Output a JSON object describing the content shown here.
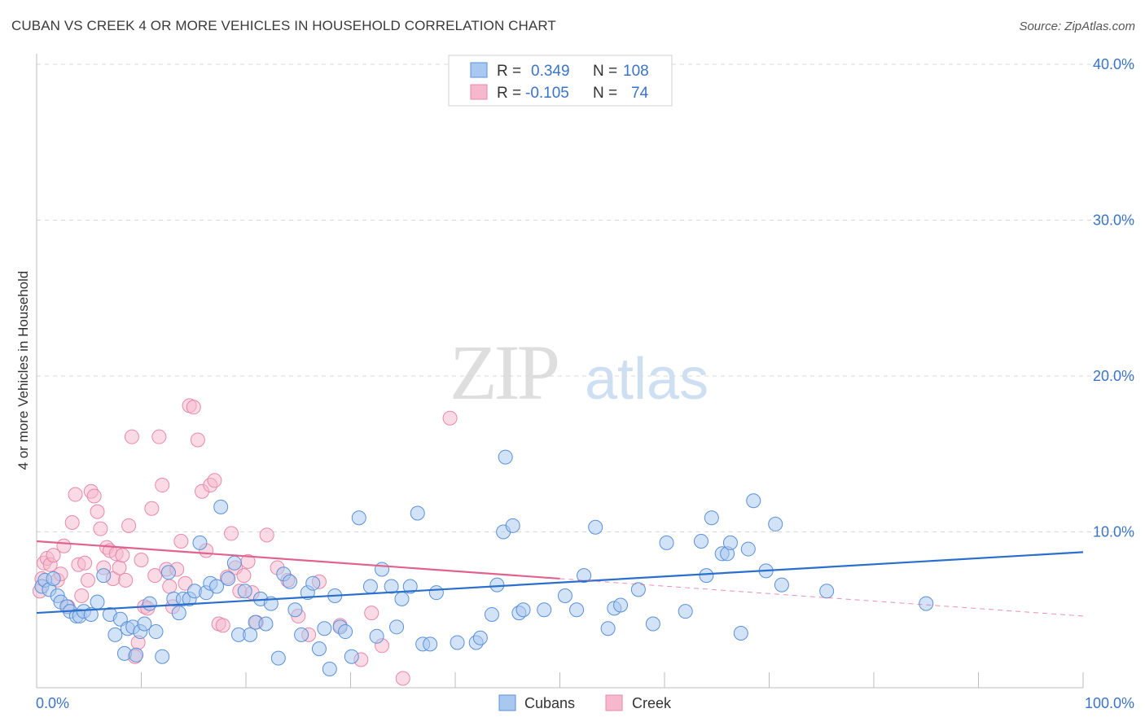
{
  "title": "CUBAN VS CREEK 4 OR MORE VEHICLES IN HOUSEHOLD CORRELATION CHART",
  "source": "Source: ZipAtlas.com",
  "watermark": {
    "zip": "ZIP",
    "atlas": "atlas"
  },
  "colors": {
    "cubans_fill": "#a8c8f0",
    "cubans_stroke": "#5a90d8",
    "cubans_line": "#2a6fcc",
    "creek_fill": "#f6b8cc",
    "creek_stroke": "#e888a8",
    "creek_line": "#e0638d",
    "axis_text": "#3a73c8",
    "grid": "#d8d8d8"
  },
  "legend": {
    "rows": [
      {
        "r_label": "R =",
        "r_value": "0.349",
        "n_label": "N =",
        "n_value": "108"
      },
      {
        "r_label": "R =",
        "r_value": "-0.105",
        "n_label": "N =",
        "n_value": "74"
      }
    ]
  },
  "chart_data": {
    "type": "scatter",
    "xlabel": "",
    "ylabel": "4 or more Vehicles in Household",
    "xlim": [
      0,
      100
    ],
    "ylim": [
      0,
      40
    ],
    "x_tick_labels": [
      "0.0%",
      "100.0%"
    ],
    "y_ticks": [
      10,
      20,
      30,
      40
    ],
    "y_tick_labels": [
      "10.0%",
      "20.0%",
      "30.0%",
      "40.0%"
    ],
    "grid": true,
    "legend_position": "top-center",
    "series": [
      {
        "name": "Cubans",
        "trend": {
          "x": [
            0,
            100
          ],
          "y": [
            4.8,
            8.7
          ]
        },
        "points": [
          [
            0.5,
            6.5
          ],
          [
            0.8,
            6.9
          ],
          [
            1.2,
            6.3
          ],
          [
            1.6,
            7.0
          ],
          [
            2.0,
            5.9
          ],
          [
            2.3,
            5.5
          ],
          [
            2.9,
            5.2
          ],
          [
            3.2,
            4.9
          ],
          [
            3.8,
            4.6
          ],
          [
            4.1,
            4.6
          ],
          [
            4.5,
            4.9
          ],
          [
            5.2,
            4.7
          ],
          [
            5.8,
            5.5
          ],
          [
            6.4,
            7.2
          ],
          [
            7.0,
            4.7
          ],
          [
            7.5,
            3.4
          ],
          [
            8.0,
            4.4
          ],
          [
            8.4,
            2.2
          ],
          [
            8.7,
            3.8
          ],
          [
            9.2,
            3.9
          ],
          [
            9.5,
            2.1
          ],
          [
            9.9,
            3.6
          ],
          [
            10.3,
            4.1
          ],
          [
            10.8,
            5.4
          ],
          [
            11.4,
            3.6
          ],
          [
            12.0,
            2.0
          ],
          [
            12.6,
            7.4
          ],
          [
            13.1,
            5.7
          ],
          [
            13.6,
            4.8
          ],
          [
            14.0,
            5.7
          ],
          [
            14.6,
            5.7
          ],
          [
            15.1,
            6.2
          ],
          [
            15.6,
            9.3
          ],
          [
            16.2,
            6.1
          ],
          [
            16.6,
            6.7
          ],
          [
            17.2,
            6.5
          ],
          [
            17.6,
            11.6
          ],
          [
            18.3,
            7.0
          ],
          [
            18.9,
            8.0
          ],
          [
            19.3,
            3.4
          ],
          [
            19.9,
            6.2
          ],
          [
            20.4,
            3.4
          ],
          [
            20.9,
            4.2
          ],
          [
            21.4,
            5.7
          ],
          [
            21.9,
            4.1
          ],
          [
            22.4,
            5.4
          ],
          [
            23.1,
            1.9
          ],
          [
            23.6,
            7.3
          ],
          [
            24.2,
            6.8
          ],
          [
            24.7,
            5.0
          ],
          [
            25.3,
            3.4
          ],
          [
            25.9,
            6.1
          ],
          [
            26.4,
            6.7
          ],
          [
            27.0,
            2.5
          ],
          [
            27.5,
            3.8
          ],
          [
            28.0,
            1.2
          ],
          [
            28.5,
            5.9
          ],
          [
            29.0,
            3.9
          ],
          [
            29.5,
            3.6
          ],
          [
            30.1,
            2.0
          ],
          [
            30.8,
            10.9
          ],
          [
            31.9,
            6.5
          ],
          [
            32.5,
            3.3
          ],
          [
            33.0,
            7.6
          ],
          [
            33.9,
            6.5
          ],
          [
            34.4,
            3.9
          ],
          [
            34.9,
            5.7
          ],
          [
            35.7,
            6.5
          ],
          [
            36.4,
            11.2
          ],
          [
            36.9,
            2.8
          ],
          [
            37.6,
            2.8
          ],
          [
            38.2,
            6.1
          ],
          [
            40.2,
            2.9
          ],
          [
            42.0,
            2.9
          ],
          [
            42.4,
            3.2
          ],
          [
            43.5,
            4.7
          ],
          [
            44.0,
            6.6
          ],
          [
            44.6,
            10.0
          ],
          [
            44.8,
            14.8
          ],
          [
            45.5,
            10.4
          ],
          [
            46.1,
            4.8
          ],
          [
            46.5,
            5.0
          ],
          [
            48.5,
            5.0
          ],
          [
            50.5,
            5.9
          ],
          [
            51.6,
            5.0
          ],
          [
            52.3,
            7.2
          ],
          [
            53.4,
            10.3
          ],
          [
            54.6,
            3.8
          ],
          [
            55.2,
            5.1
          ],
          [
            55.8,
            5.3
          ],
          [
            57.5,
            6.3
          ],
          [
            58.9,
            4.1
          ],
          [
            60.2,
            9.3
          ],
          [
            62.0,
            4.9
          ],
          [
            63.5,
            9.4
          ],
          [
            64.0,
            7.2
          ],
          [
            64.5,
            10.9
          ],
          [
            65.5,
            8.6
          ],
          [
            66.0,
            8.6
          ],
          [
            66.3,
            9.3
          ],
          [
            67.3,
            3.5
          ],
          [
            68.0,
            8.9
          ],
          [
            68.5,
            12.0
          ],
          [
            69.7,
            7.5
          ],
          [
            70.6,
            10.5
          ],
          [
            71.2,
            6.6
          ],
          [
            75.5,
            6.2
          ],
          [
            85.0,
            5.4
          ]
        ]
      },
      {
        "name": "Creek",
        "trend": {
          "x": [
            0,
            50
          ],
          "y": [
            9.4,
            7.0
          ]
        },
        "trend_dashed": {
          "x": [
            50,
            100
          ],
          "y": [
            7.0,
            4.6
          ]
        },
        "points": [
          [
            0.3,
            6.2
          ],
          [
            0.5,
            7.0
          ],
          [
            0.7,
            8.0
          ],
          [
            1.0,
            8.3
          ],
          [
            1.3,
            7.9
          ],
          [
            1.6,
            8.5
          ],
          [
            2.0,
            6.9
          ],
          [
            2.3,
            7.3
          ],
          [
            2.6,
            9.1
          ],
          [
            3.0,
            5.2
          ],
          [
            3.4,
            10.6
          ],
          [
            3.7,
            12.4
          ],
          [
            4.0,
            7.9
          ],
          [
            4.3,
            5.9
          ],
          [
            4.6,
            8.0
          ],
          [
            4.9,
            6.9
          ],
          [
            5.2,
            12.6
          ],
          [
            5.5,
            12.3
          ],
          [
            5.8,
            11.3
          ],
          [
            6.1,
            10.2
          ],
          [
            6.4,
            7.7
          ],
          [
            6.7,
            9.0
          ],
          [
            7.0,
            8.8
          ],
          [
            7.3,
            7.0
          ],
          [
            7.6,
            8.6
          ],
          [
            7.9,
            7.7
          ],
          [
            8.2,
            8.5
          ],
          [
            8.5,
            6.9
          ],
          [
            8.8,
            10.4
          ],
          [
            9.1,
            16.1
          ],
          [
            9.4,
            2.0
          ],
          [
            9.7,
            2.9
          ],
          [
            10.0,
            8.2
          ],
          [
            10.3,
            5.2
          ],
          [
            10.6,
            5.1
          ],
          [
            11.0,
            11.5
          ],
          [
            11.3,
            7.2
          ],
          [
            11.7,
            16.1
          ],
          [
            12.0,
            13.0
          ],
          [
            12.4,
            7.6
          ],
          [
            12.7,
            6.5
          ],
          [
            13.0,
            5.2
          ],
          [
            13.4,
            7.6
          ],
          [
            13.8,
            9.4
          ],
          [
            14.2,
            6.7
          ],
          [
            14.6,
            18.1
          ],
          [
            15.0,
            18.0
          ],
          [
            15.4,
            15.9
          ],
          [
            15.8,
            12.6
          ],
          [
            16.2,
            8.8
          ],
          [
            16.6,
            13.0
          ],
          [
            17.0,
            13.3
          ],
          [
            17.4,
            4.1
          ],
          [
            17.8,
            4.0
          ],
          [
            18.2,
            7.1
          ],
          [
            18.6,
            9.9
          ],
          [
            19.0,
            7.7
          ],
          [
            19.4,
            6.2
          ],
          [
            19.8,
            7.2
          ],
          [
            20.2,
            8.1
          ],
          [
            20.6,
            6.1
          ],
          [
            21.0,
            4.2
          ],
          [
            22.0,
            9.8
          ],
          [
            23.0,
            7.7
          ],
          [
            24.0,
            6.9
          ],
          [
            25.0,
            4.6
          ],
          [
            26.0,
            3.4
          ],
          [
            27.0,
            6.8
          ],
          [
            29.0,
            4.0
          ],
          [
            31.0,
            1.8
          ],
          [
            32.0,
            4.8
          ],
          [
            33.0,
            2.7
          ],
          [
            35.0,
            0.6
          ],
          [
            39.5,
            17.3
          ]
        ]
      }
    ]
  },
  "bottom_legend": {
    "items": [
      "Cubans",
      "Creek"
    ]
  }
}
